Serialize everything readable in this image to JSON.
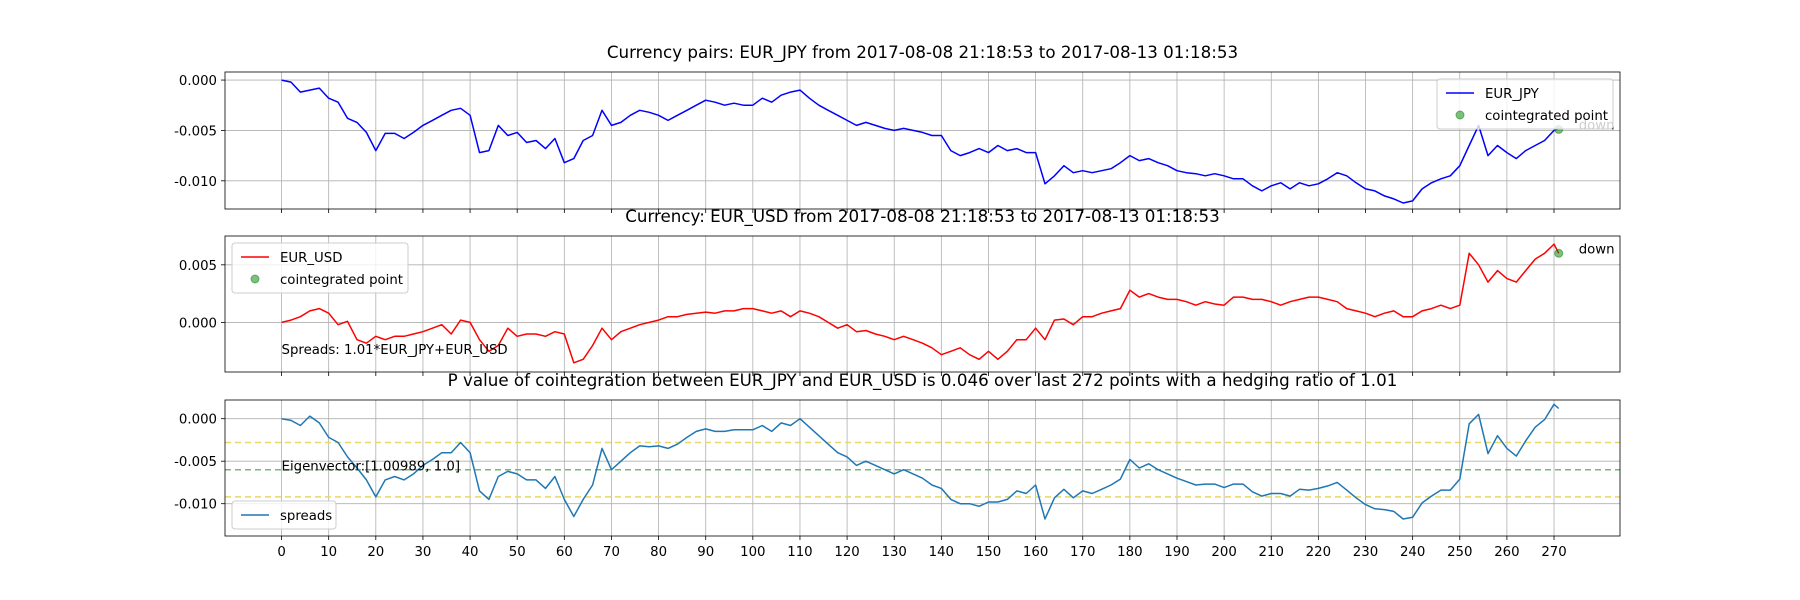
{
  "chart_data": [
    {
      "type": "line",
      "title": "Currency pairs: EUR_JPY from 2017-08-08 21:18:53 to 2017-08-13 01:18:53",
      "ylim": [
        -0.0128,
        0.0008
      ],
      "yticks": [
        0.0,
        -0.005,
        -0.01
      ],
      "ytick_labels": [
        "0.000",
        "-0.005",
        "-0.010"
      ],
      "grid": true,
      "legend_loc": "upper right",
      "series": [
        {
          "name": "EUR_JPY",
          "color": "#0000ff",
          "x": [
            0,
            2,
            4,
            6,
            8,
            10,
            12,
            14,
            16,
            18,
            20,
            22,
            24,
            26,
            28,
            30,
            32,
            34,
            36,
            38,
            40,
            42,
            44,
            46,
            48,
            50,
            52,
            54,
            56,
            58,
            60,
            62,
            64,
            66,
            68,
            70,
            72,
            74,
            76,
            78,
            80,
            82,
            84,
            86,
            88,
            90,
            92,
            94,
            96,
            98,
            100,
            102,
            104,
            106,
            108,
            110,
            112,
            114,
            116,
            118,
            120,
            122,
            124,
            126,
            128,
            130,
            132,
            134,
            136,
            138,
            140,
            142,
            144,
            146,
            148,
            150,
            152,
            154,
            156,
            158,
            160,
            162,
            164,
            166,
            168,
            170,
            172,
            174,
            176,
            178,
            180,
            182,
            184,
            186,
            188,
            190,
            192,
            194,
            196,
            198,
            200,
            202,
            204,
            206,
            208,
            210,
            212,
            214,
            216,
            218,
            220,
            222,
            224,
            226,
            228,
            230,
            232,
            234,
            236,
            238,
            240,
            242,
            244,
            246,
            248,
            250,
            252,
            254,
            256,
            258,
            260,
            262,
            264,
            266,
            268,
            270,
            271
          ],
          "values": [
            0.0,
            -0.0002,
            -0.0012,
            -0.001,
            -0.0008,
            -0.0018,
            -0.0022,
            -0.0038,
            -0.0042,
            -0.0052,
            -0.007,
            -0.0053,
            -0.0053,
            -0.0058,
            -0.0052,
            -0.0045,
            -0.004,
            -0.0035,
            -0.003,
            -0.0028,
            -0.0035,
            -0.0072,
            -0.007,
            -0.0045,
            -0.0055,
            -0.0052,
            -0.0062,
            -0.006,
            -0.0068,
            -0.0058,
            -0.0082,
            -0.0078,
            -0.006,
            -0.0055,
            -0.003,
            -0.0045,
            -0.0042,
            -0.0035,
            -0.003,
            -0.0032,
            -0.0035,
            -0.004,
            -0.0035,
            -0.003,
            -0.0025,
            -0.002,
            -0.0022,
            -0.0025,
            -0.0023,
            -0.0025,
            -0.0025,
            -0.0018,
            -0.0022,
            -0.0015,
            -0.0012,
            -0.001,
            -0.0018,
            -0.0025,
            -0.003,
            -0.0035,
            -0.004,
            -0.0045,
            -0.0042,
            -0.0045,
            -0.0048,
            -0.005,
            -0.0048,
            -0.005,
            -0.0052,
            -0.0055,
            -0.0055,
            -0.007,
            -0.0075,
            -0.0072,
            -0.0068,
            -0.0072,
            -0.0065,
            -0.007,
            -0.0068,
            -0.0072,
            -0.0072,
            -0.0103,
            -0.0095,
            -0.0085,
            -0.0092,
            -0.009,
            -0.0092,
            -0.009,
            -0.0088,
            -0.0082,
            -0.0075,
            -0.008,
            -0.0078,
            -0.0082,
            -0.0085,
            -0.009,
            -0.0092,
            -0.0093,
            -0.0095,
            -0.0093,
            -0.0095,
            -0.0098,
            -0.0098,
            -0.0105,
            -0.011,
            -0.0105,
            -0.0102,
            -0.0108,
            -0.0102,
            -0.0105,
            -0.0103,
            -0.0098,
            -0.0092,
            -0.0095,
            -0.0102,
            -0.0108,
            -0.011,
            -0.0115,
            -0.0118,
            -0.0122,
            -0.012,
            -0.0108,
            -0.0102,
            -0.0098,
            -0.0095,
            -0.0085,
            -0.0065,
            -0.0045,
            -0.0075,
            -0.0065,
            -0.0072,
            -0.0078,
            -0.007,
            -0.0065,
            -0.006,
            -0.005,
            -0.0048
          ]
        }
      ],
      "points": [
        {
          "name": "cointegrated point",
          "x": 271,
          "y": -0.0049,
          "color": "#008000",
          "label": "down"
        }
      ]
    },
    {
      "type": "line",
      "title": "Currency: EUR_USD from 2017-08-08 21:18:53 to 2017-08-13 01:18:53",
      "ylim": [
        -0.0043,
        0.0075
      ],
      "yticks": [
        0.005,
        0.0
      ],
      "ytick_labels": [
        "0.005",
        "0.000"
      ],
      "grid": true,
      "legend_loc": "upper left",
      "annotation": "Spreads: 1.01*EUR_JPY+EUR_USD",
      "series": [
        {
          "name": "EUR_USD",
          "color": "#ff0000",
          "x": [
            0,
            2,
            4,
            6,
            8,
            10,
            12,
            14,
            16,
            18,
            20,
            22,
            24,
            26,
            28,
            30,
            32,
            34,
            36,
            38,
            40,
            42,
            44,
            46,
            48,
            50,
            52,
            54,
            56,
            58,
            60,
            62,
            64,
            66,
            68,
            70,
            72,
            74,
            76,
            78,
            80,
            82,
            84,
            86,
            88,
            90,
            92,
            94,
            96,
            98,
            100,
            102,
            104,
            106,
            108,
            110,
            112,
            114,
            116,
            118,
            120,
            122,
            124,
            126,
            128,
            130,
            132,
            134,
            136,
            138,
            140,
            142,
            144,
            146,
            148,
            150,
            152,
            154,
            156,
            158,
            160,
            162,
            164,
            166,
            168,
            170,
            172,
            174,
            176,
            178,
            180,
            182,
            184,
            186,
            188,
            190,
            192,
            194,
            196,
            198,
            200,
            202,
            204,
            206,
            208,
            210,
            212,
            214,
            216,
            218,
            220,
            222,
            224,
            226,
            228,
            230,
            232,
            234,
            236,
            238,
            240,
            242,
            244,
            246,
            248,
            250,
            252,
            254,
            256,
            258,
            260,
            262,
            264,
            266,
            268,
            270,
            271
          ],
          "values": [
            0.0,
            0.0002,
            0.0005,
            0.001,
            0.0012,
            0.0008,
            -0.0002,
            0.0001,
            -0.0015,
            -0.0018,
            -0.0012,
            -0.0015,
            -0.0012,
            -0.0012,
            -0.001,
            -0.0008,
            -0.0005,
            -0.0002,
            -0.001,
            0.0002,
            0.0,
            -0.0015,
            -0.0025,
            -0.002,
            -0.0005,
            -0.0012,
            -0.001,
            -0.001,
            -0.0012,
            -0.0008,
            -0.001,
            -0.0035,
            -0.0032,
            -0.002,
            -0.0005,
            -0.0015,
            -0.0008,
            -0.0005,
            -0.0002,
            0.0,
            0.0002,
            0.0005,
            0.0005,
            0.0007,
            0.0008,
            0.0009,
            0.0008,
            0.001,
            0.001,
            0.0012,
            0.0012,
            0.001,
            0.0008,
            0.001,
            0.0005,
            0.001,
            0.0008,
            0.0005,
            0.0,
            -0.0005,
            -0.0002,
            -0.0008,
            -0.0007,
            -0.001,
            -0.0012,
            -0.0015,
            -0.0012,
            -0.0015,
            -0.0018,
            -0.0022,
            -0.0028,
            -0.0025,
            -0.0022,
            -0.0028,
            -0.0032,
            -0.0025,
            -0.0032,
            -0.0025,
            -0.0015,
            -0.0015,
            -0.0005,
            -0.0015,
            0.0002,
            0.0003,
            -0.0002,
            0.0005,
            0.0005,
            0.0008,
            0.001,
            0.0012,
            0.0028,
            0.0022,
            0.0025,
            0.0022,
            0.002,
            0.002,
            0.0018,
            0.0015,
            0.0018,
            0.0016,
            0.0015,
            0.0022,
            0.0022,
            0.002,
            0.002,
            0.0018,
            0.0015,
            0.0018,
            0.002,
            0.0022,
            0.0022,
            0.002,
            0.0018,
            0.0012,
            0.001,
            0.0008,
            0.0005,
            0.0008,
            0.001,
            0.0005,
            0.0005,
            0.001,
            0.0012,
            0.0015,
            0.0012,
            0.0015,
            0.006,
            0.005,
            0.0035,
            0.0045,
            0.0038,
            0.0035,
            0.0045,
            0.0055,
            0.006,
            0.0068,
            0.006
          ]
        }
      ],
      "points": [
        {
          "name": "cointegrated point",
          "x": 271,
          "y": 0.006,
          "color": "#008000",
          "label": "down"
        }
      ]
    },
    {
      "type": "line",
      "title": "P value of cointegration between EUR_JPY and EUR_USD is 0.046 over last 272 points with a hedging ratio of 1.01",
      "ylim": [
        -0.0138,
        0.0022
      ],
      "yticks": [
        0.0,
        -0.005,
        -0.01
      ],
      "ytick_labels": [
        "0.000",
        "-0.005",
        "-0.010"
      ],
      "grid": true,
      "legend_loc": "lower left",
      "annotation": "Eigenvector:[1.00989, 1.0]",
      "xticks": [
        0,
        10,
        20,
        30,
        40,
        50,
        60,
        70,
        80,
        90,
        100,
        110,
        120,
        130,
        140,
        150,
        160,
        170,
        180,
        190,
        200,
        210,
        220,
        230,
        240,
        250,
        260,
        270
      ],
      "hlines": [
        {
          "y": -0.0028,
          "color": "#e8d86a",
          "style": "dashed"
        },
        {
          "y": -0.006,
          "color": "#76b876",
          "style": "dashed"
        },
        {
          "y": -0.0092,
          "color": "#e8d86a",
          "style": "dashed"
        }
      ],
      "series": [
        {
          "name": "spreads",
          "color": "#1f77b4",
          "x": [
            0,
            2,
            4,
            6,
            8,
            10,
            12,
            14,
            16,
            18,
            20,
            22,
            24,
            26,
            28,
            30,
            32,
            34,
            36,
            38,
            40,
            42,
            44,
            46,
            48,
            50,
            52,
            54,
            56,
            58,
            60,
            62,
            64,
            66,
            68,
            70,
            72,
            74,
            76,
            78,
            80,
            82,
            84,
            86,
            88,
            90,
            92,
            94,
            96,
            98,
            100,
            102,
            104,
            106,
            108,
            110,
            112,
            114,
            116,
            118,
            120,
            122,
            124,
            126,
            128,
            130,
            132,
            134,
            136,
            138,
            140,
            142,
            144,
            146,
            148,
            150,
            152,
            154,
            156,
            158,
            160,
            162,
            164,
            166,
            168,
            170,
            172,
            174,
            176,
            178,
            180,
            182,
            184,
            186,
            188,
            190,
            192,
            194,
            196,
            198,
            200,
            202,
            204,
            206,
            208,
            210,
            212,
            214,
            216,
            218,
            220,
            222,
            224,
            226,
            228,
            230,
            232,
            234,
            236,
            238,
            240,
            242,
            244,
            246,
            248,
            250,
            252,
            254,
            256,
            258,
            260,
            262,
            264,
            266,
            268,
            270,
            271
          ],
          "values": [
            0.0,
            -0.0002,
            -0.0008,
            0.0003,
            -0.0005,
            -0.0022,
            -0.0028,
            -0.0045,
            -0.0058,
            -0.0072,
            -0.0092,
            -0.0072,
            -0.0068,
            -0.0072,
            -0.0065,
            -0.0055,
            -0.0048,
            -0.004,
            -0.004,
            -0.0028,
            -0.004,
            -0.0085,
            -0.0095,
            -0.0068,
            -0.0062,
            -0.0065,
            -0.0072,
            -0.0072,
            -0.0082,
            -0.0068,
            -0.0095,
            -0.0115,
            -0.0095,
            -0.0078,
            -0.0035,
            -0.006,
            -0.005,
            -0.004,
            -0.0032,
            -0.0033,
            -0.0032,
            -0.0035,
            -0.003,
            -0.0022,
            -0.0015,
            -0.0012,
            -0.0015,
            -0.0015,
            -0.0013,
            -0.0013,
            -0.0013,
            -0.0008,
            -0.0015,
            -0.0005,
            -0.0008,
            0.0,
            -0.001,
            -0.002,
            -0.003,
            -0.004,
            -0.0045,
            -0.0055,
            -0.005,
            -0.0055,
            -0.006,
            -0.0065,
            -0.006,
            -0.0065,
            -0.007,
            -0.0078,
            -0.0082,
            -0.0095,
            -0.01,
            -0.01,
            -0.0103,
            -0.0098,
            -0.0098,
            -0.0095,
            -0.0085,
            -0.0088,
            -0.0078,
            -0.0118,
            -0.0093,
            -0.0083,
            -0.0093,
            -0.0085,
            -0.0088,
            -0.0083,
            -0.0078,
            -0.0071,
            -0.0048,
            -0.0058,
            -0.0053,
            -0.006,
            -0.0065,
            -0.007,
            -0.0074,
            -0.0078,
            -0.0077,
            -0.0077,
            -0.0081,
            -0.0077,
            -0.0077,
            -0.0086,
            -0.0091,
            -0.0088,
            -0.0088,
            -0.0091,
            -0.0083,
            -0.0084,
            -0.0082,
            -0.0079,
            -0.0075,
            -0.0084,
            -0.0093,
            -0.0101,
            -0.0106,
            -0.0107,
            -0.0109,
            -0.0118,
            -0.0116,
            -0.0099,
            -0.0091,
            -0.0084,
            -0.0084,
            -0.0071,
            -0.0006,
            0.0005,
            -0.0041,
            -0.002,
            -0.0035,
            -0.0044,
            -0.0026,
            -0.001,
            -0.0001,
            0.0017,
            0.0012
          ]
        }
      ]
    }
  ]
}
